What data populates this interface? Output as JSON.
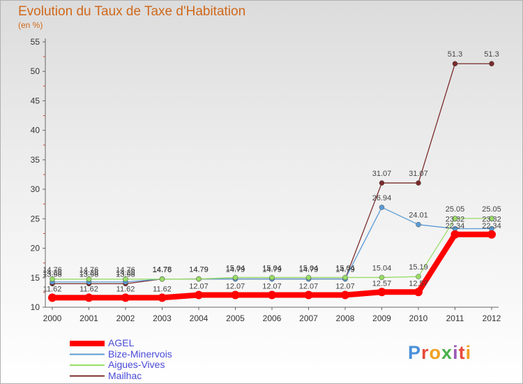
{
  "title": "Evolution du Taux de Taxe d'Habitation",
  "unit_label": "(en %)",
  "logo": "Proxiti",
  "chart_data": {
    "type": "line",
    "x": [
      "2000",
      "2001",
      "2002",
      "2003",
      "2004",
      "2005",
      "2006",
      "2007",
      "2008",
      "2009",
      "2010",
      "2011",
      "2012"
    ],
    "ylim": [
      10,
      55
    ],
    "yticks": [
      10,
      15,
      20,
      25,
      30,
      35,
      40,
      45,
      50,
      55
    ],
    "grid": false,
    "legend_position": "bottom-left",
    "series": [
      {
        "name": "AGEL",
        "color": "#ff0000",
        "values": [
          11.62,
          11.62,
          11.62,
          11.62,
          12.07,
          12.07,
          12.07,
          12.07,
          12.07,
          12.57,
          12.57,
          22.34,
          22.34
        ],
        "labels": [
          "11.62",
          "11.62",
          "11.62",
          "11.62",
          "12.07",
          "12.07",
          "12.07",
          "12.07",
          "12.07",
          "12.57",
          "12.57",
          "22.34",
          "22.34"
        ]
      },
      {
        "name": "Bize-Minervois",
        "color": "#5b9bd5",
        "values": [
          14.28,
          14.28,
          14.28,
          14.78,
          14.79,
          14.79,
          14.79,
          14.79,
          14.79,
          26.94,
          24.01,
          23.32,
          23.32
        ],
        "labels": [
          "14.28",
          "14.28",
          "14.28",
          "14.78",
          "14.79",
          "14.79",
          "14.79",
          "14.79",
          "14.79",
          "26.94",
          "24.01",
          "23.32",
          "23.32"
        ]
      },
      {
        "name": "Aigues-Vives",
        "color": "#99dd66",
        "values": [
          14.76,
          14.76,
          14.76,
          14.76,
          14.79,
          15.04,
          15.04,
          15.04,
          15.04,
          15.04,
          15.19,
          25.05,
          25.05
        ],
        "labels": [
          "14.76",
          "14.76",
          "14.76",
          "14.76",
          "14.79",
          "15.04",
          "15.04",
          "15.04",
          "15.04",
          "15.04",
          "15.19",
          "25.05",
          "25.05"
        ]
      },
      {
        "name": "Mailhac",
        "color": "#7a2a2a",
        "values": [
          13.98,
          13.98,
          13.98,
          14.78,
          14.79,
          14.79,
          14.79,
          14.79,
          14.79,
          31.07,
          31.07,
          51.3,
          51.3
        ],
        "labels": [
          "13.98",
          "13.98",
          "13.98",
          "14.78",
          "14.79",
          "14.79",
          "14.79",
          "14.79",
          "14.79",
          "31.07",
          "31.07",
          "51.3",
          "51.3"
        ]
      }
    ]
  }
}
